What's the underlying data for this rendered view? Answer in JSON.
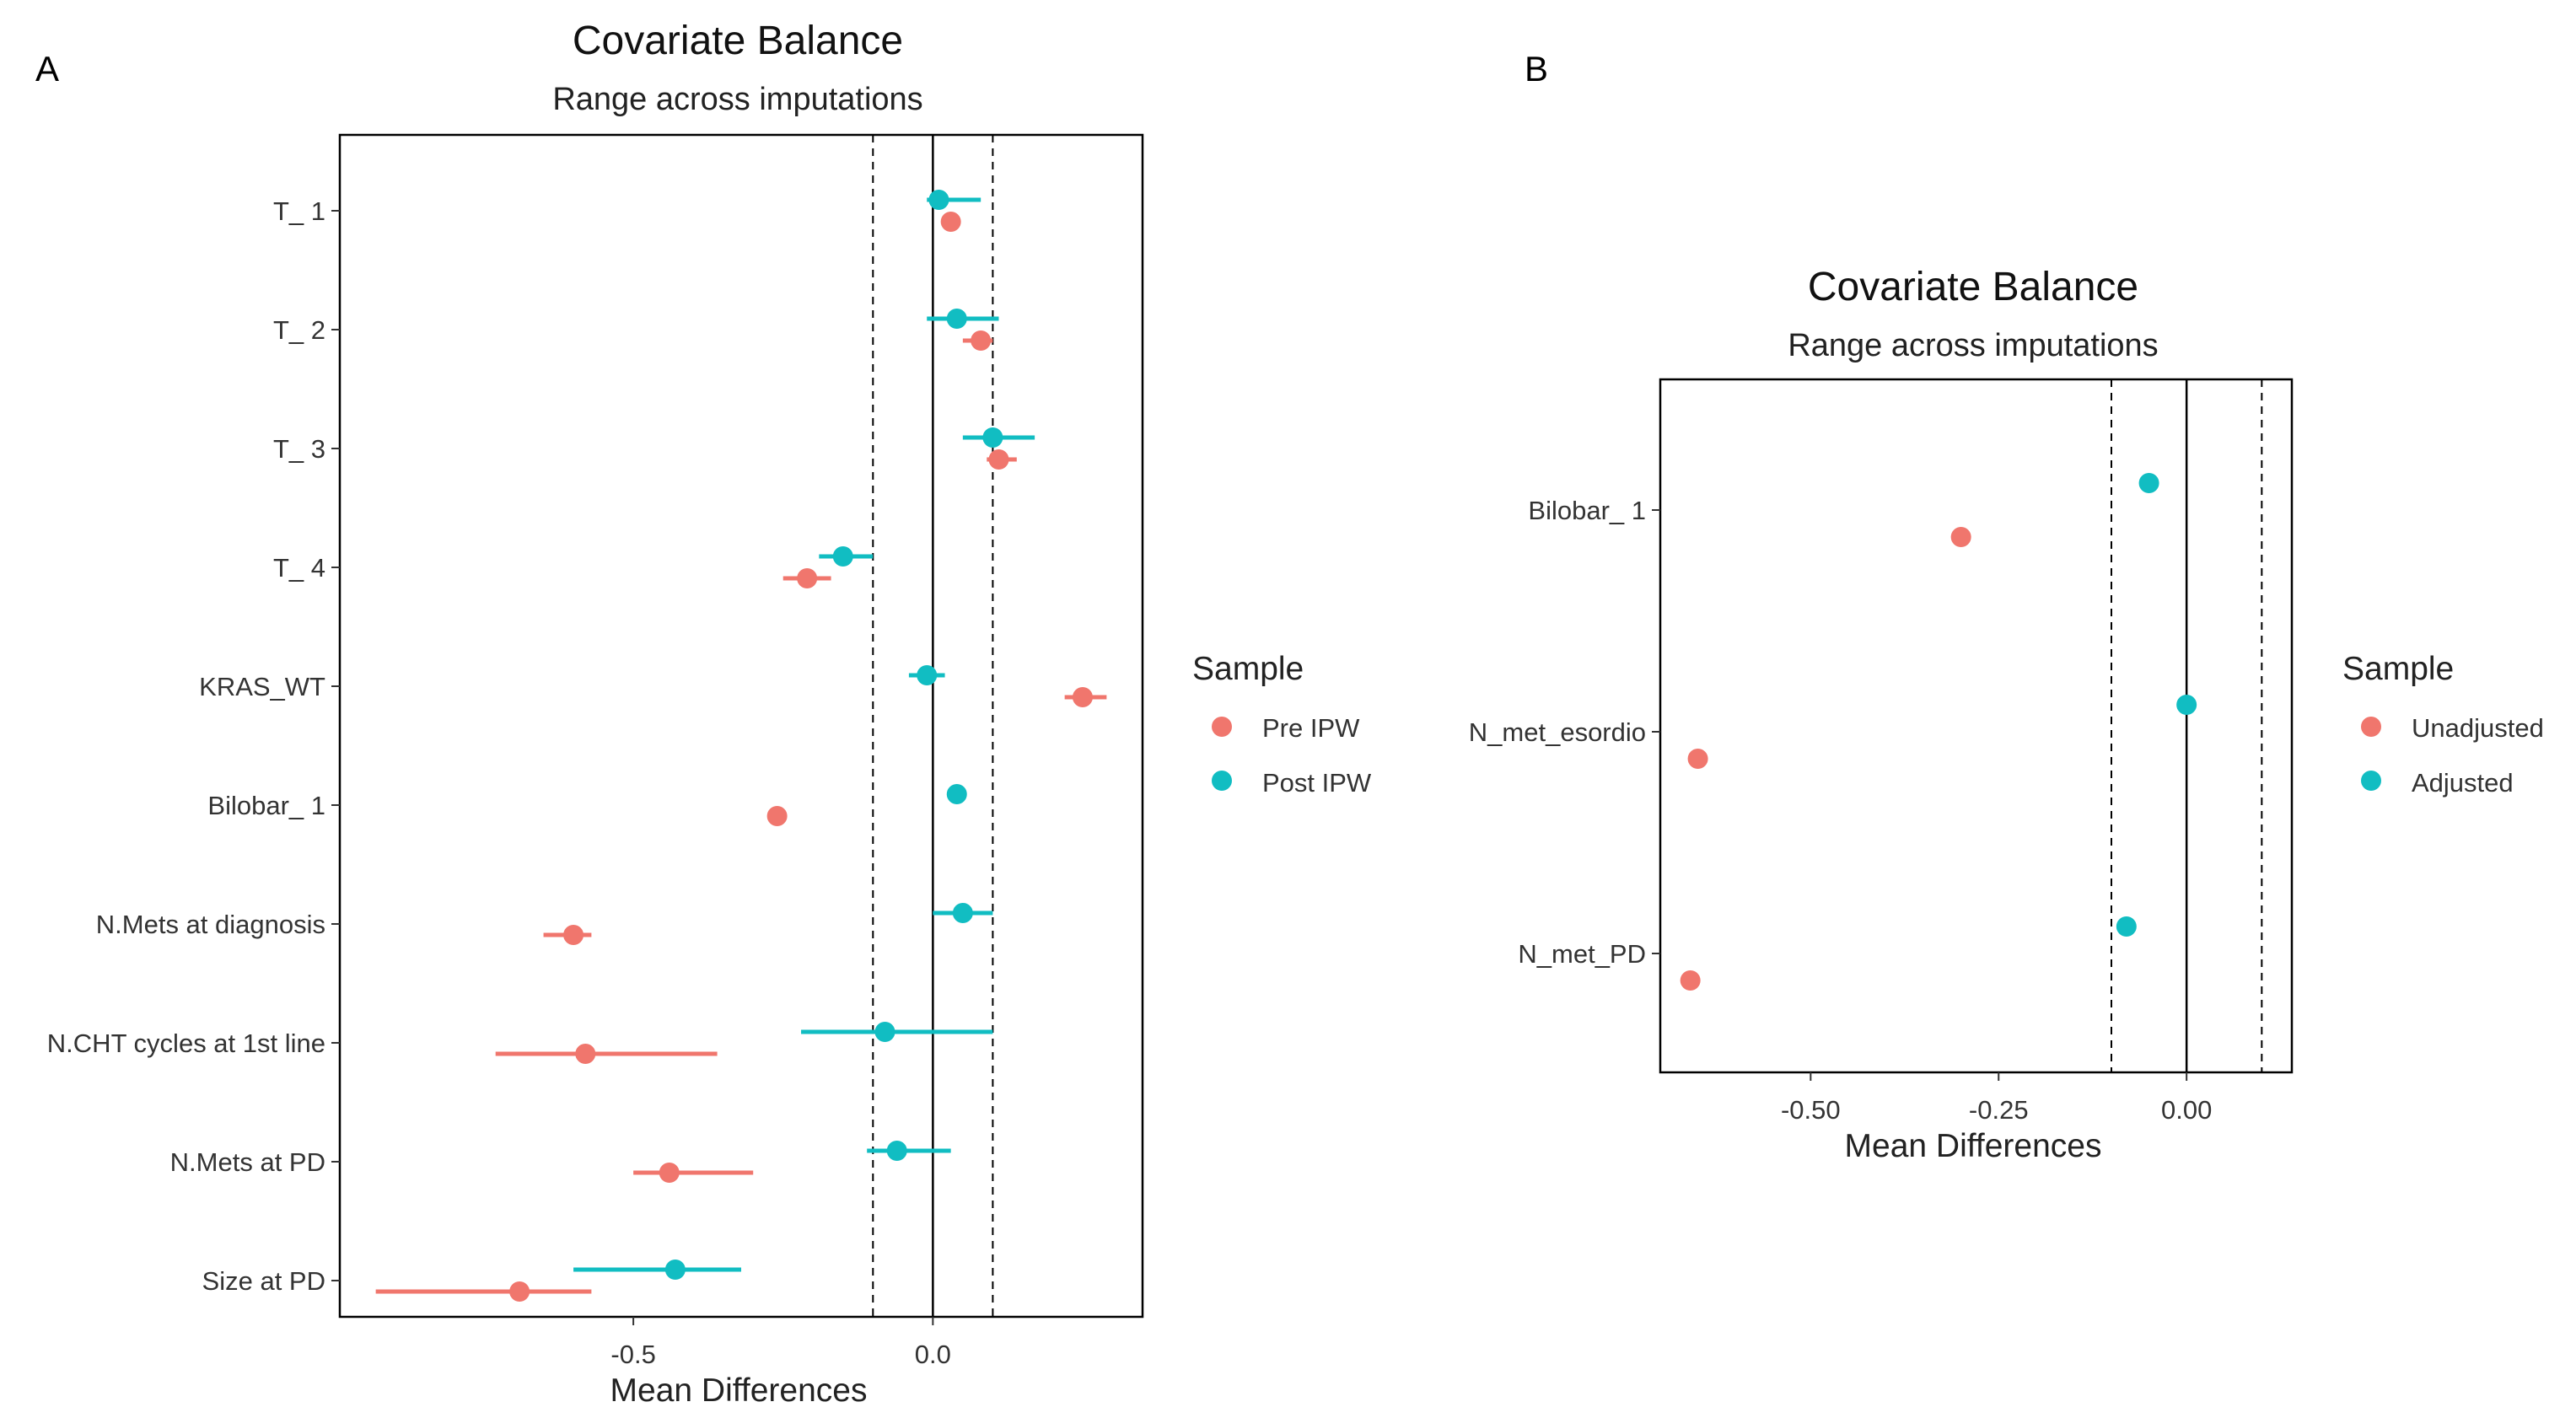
{
  "colors": {
    "series1": "#F0766D",
    "series2": "#11BDC2",
    "axis": "#000000"
  },
  "chart_data": [
    {
      "panel": "A",
      "type": "dot-range",
      "title": "Covariate Balance",
      "subtitle": "Range across imputations",
      "xlabel": "Mean Differences",
      "xlim": [
        -0.99,
        0.35
      ],
      "xticks": [
        {
          "value": -0.5,
          "label": "-0.5"
        },
        {
          "value": 0.0,
          "label": "0.0"
        }
      ],
      "threshold_lines": [
        -0.1,
        0.1
      ],
      "zero_line": 0,
      "categories": [
        "T_ 1",
        "T_ 2",
        "T_ 3",
        "T_ 4",
        "KRAS_WT",
        "Bilobar_ 1",
        "N.Mets at diagnosis",
        "N.CHT cycles at 1st line",
        "N.Mets at PD",
        "Size at PD"
      ],
      "legend": {
        "title": "Sample",
        "position": "right"
      },
      "series": [
        {
          "name": "Pre IPW",
          "points": [
            {
              "value": 0.03,
              "low": 0.02,
              "high": 0.04
            },
            {
              "value": 0.08,
              "low": 0.05,
              "high": 0.1
            },
            {
              "value": 0.11,
              "low": 0.09,
              "high": 0.14
            },
            {
              "value": -0.21,
              "low": -0.25,
              "high": -0.17
            },
            {
              "value": 0.25,
              "low": 0.22,
              "high": 0.29
            },
            {
              "value": -0.26,
              "low": -0.27,
              "high": -0.25
            },
            {
              "value": -0.6,
              "low": -0.65,
              "high": -0.57
            },
            {
              "value": -0.58,
              "low": -0.73,
              "high": -0.36
            },
            {
              "value": -0.44,
              "low": -0.5,
              "high": -0.3
            },
            {
              "value": -0.69,
              "low": -0.93,
              "high": -0.57
            }
          ]
        },
        {
          "name": "Post IPW",
          "points": [
            {
              "value": 0.01,
              "low": -0.01,
              "high": 0.08
            },
            {
              "value": 0.04,
              "low": -0.01,
              "high": 0.11
            },
            {
              "value": 0.1,
              "low": 0.05,
              "high": 0.17
            },
            {
              "value": -0.15,
              "low": -0.19,
              "high": -0.1
            },
            {
              "value": -0.01,
              "low": -0.04,
              "high": 0.02
            },
            {
              "value": 0.04,
              "low": 0.04,
              "high": 0.04
            },
            {
              "value": 0.05,
              "low": 0.0,
              "high": 0.1
            },
            {
              "value": -0.08,
              "low": -0.22,
              "high": 0.1
            },
            {
              "value": -0.06,
              "low": -0.11,
              "high": 0.03
            },
            {
              "value": -0.43,
              "low": -0.6,
              "high": -0.32
            }
          ]
        }
      ]
    },
    {
      "panel": "B",
      "type": "dot-range",
      "title": "Covariate Balance",
      "subtitle": "Range across imputations",
      "xlabel": "Mean Differences",
      "xlim": [
        -0.7,
        0.14
      ],
      "xticks": [
        {
          "value": -0.5,
          "label": "-0.50"
        },
        {
          "value": -0.25,
          "label": "-0.25"
        },
        {
          "value": 0.0,
          "label": "0.00"
        }
      ],
      "threshold_lines": [
        -0.1,
        0.1
      ],
      "zero_line": 0,
      "categories": [
        "Bilobar_ 1",
        "N_met_esordio",
        "N_met_PD"
      ],
      "legend": {
        "title": "Sample",
        "position": "right"
      },
      "series": [
        {
          "name": "Unadjusted",
          "points": [
            {
              "value": -0.3,
              "low": -0.3,
              "high": -0.3
            },
            {
              "value": -0.65,
              "low": -0.65,
              "high": -0.65
            },
            {
              "value": -0.66,
              "low": -0.66,
              "high": -0.66
            }
          ]
        },
        {
          "name": "Adjusted",
          "points": [
            {
              "value": -0.05,
              "low": -0.05,
              "high": -0.05
            },
            {
              "value": 0.0,
              "low": 0.0,
              "high": 0.0
            },
            {
              "value": -0.08,
              "low": -0.08,
              "high": -0.08
            }
          ]
        }
      ]
    }
  ]
}
